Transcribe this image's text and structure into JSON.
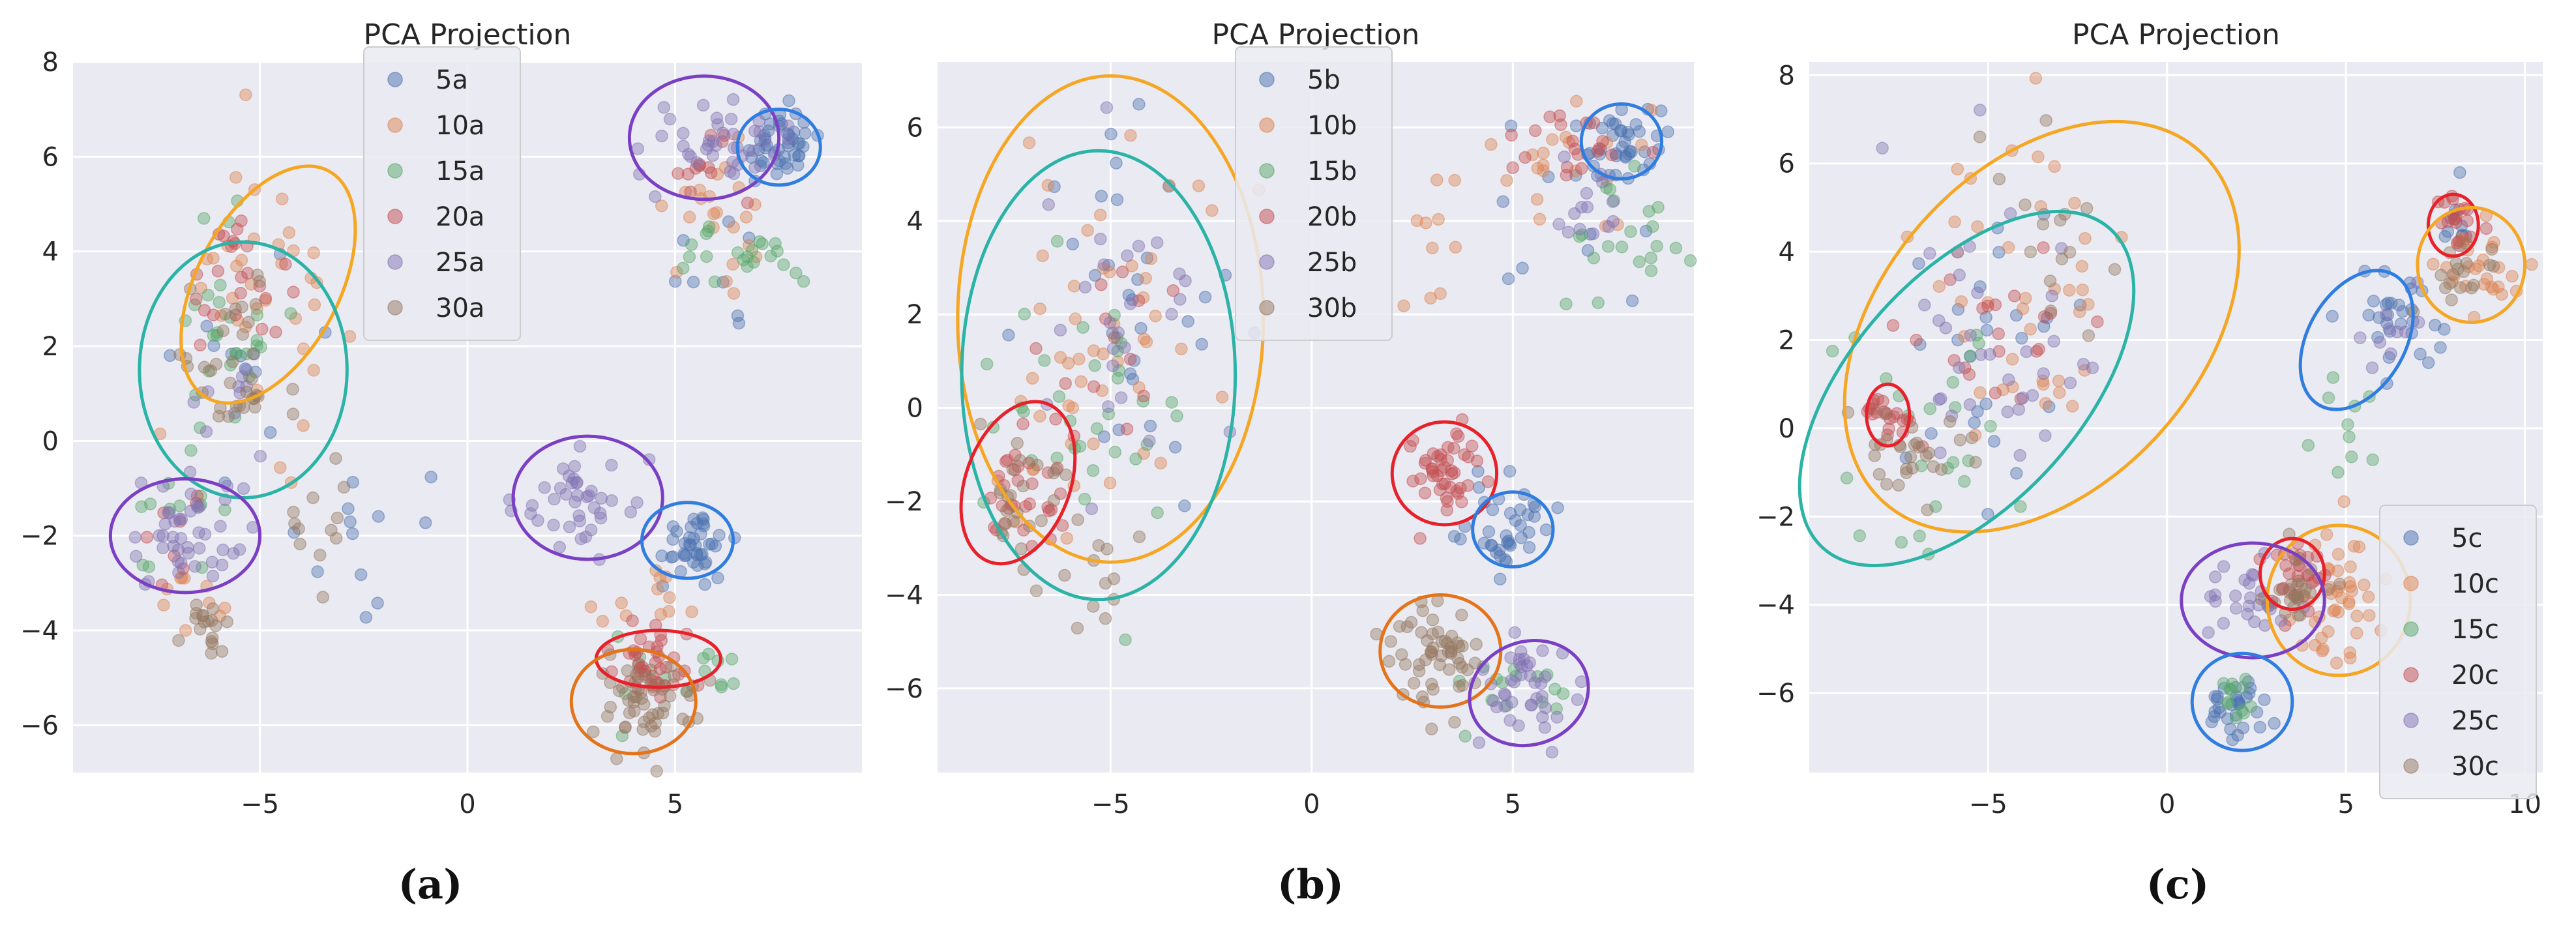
{
  "figure": {
    "captions": [
      "(a)",
      "(b)",
      "(c)"
    ]
  },
  "chart_data": [
    {
      "type": "scatter",
      "title": "PCA Projection",
      "xlabel": "",
      "ylabel": "",
      "xlim": [
        -9.5,
        9.5
      ],
      "ylim": [
        -7,
        8
      ],
      "xticks": [
        "−5",
        "0",
        "5"
      ],
      "xtick_values": [
        -5,
        0,
        5
      ],
      "yticks": [
        "8",
        "6",
        "4",
        "2",
        "0",
        "−2",
        "−4",
        "−6"
      ],
      "ytick_values": [
        8,
        6,
        4,
        2,
        0,
        -2,
        -4,
        -6
      ],
      "grid": true,
      "legend_position": "top-center",
      "series": [
        {
          "name": "5a",
          "color": "#4c72b0",
          "clusters": [
            [
              7.5,
              6.2,
              0.5,
              0.4,
              45
            ],
            [
              5.5,
              -2.1,
              0.4,
              0.35,
              40
            ],
            [
              -2.5,
              -1.8,
              1.2,
              0.8,
              12
            ],
            [
              -5,
              1.5,
              0.9,
              1.2,
              12
            ],
            [
              6,
              3,
              0.5,
              0.8,
              8
            ]
          ]
        },
        {
          "name": "10a",
          "color": "#dd8452",
          "clusters": [
            [
              -4.8,
              3.2,
              1.0,
              1.5,
              35
            ],
            [
              5.8,
              5,
              0.7,
              0.6,
              22
            ],
            [
              -6.7,
              -3.5,
              0.4,
              0.4,
              10
            ],
            [
              4.3,
              -3.5,
              0.6,
              0.3,
              12
            ]
          ]
        },
        {
          "name": "15a",
          "color": "#55a868",
          "clusters": [
            [
              -5.8,
              2,
              0.7,
              1.2,
              28
            ],
            [
              6.5,
              4,
              1.2,
              0.4,
              22
            ],
            [
              5,
              -5.2,
              1.0,
              0.5,
              18
            ],
            [
              -6.8,
              -2,
              0.6,
              0.5,
              10
            ]
          ]
        },
        {
          "name": "20a",
          "color": "#c44e52",
          "clusters": [
            [
              -5.5,
              3.5,
              0.6,
              0.8,
              24
            ],
            [
              4.5,
              -4.6,
              0.7,
              0.4,
              40
            ],
            [
              5.8,
              5.8,
              0.5,
              0.4,
              12
            ],
            [
              -7,
              -2,
              0.4,
              0.4,
              8
            ]
          ]
        },
        {
          "name": "25a",
          "color": "#8172b3",
          "clusters": [
            [
              6,
              6.3,
              0.8,
              0.5,
              40
            ],
            [
              2.8,
              -1.2,
              0.8,
              0.5,
              40
            ],
            [
              -6.7,
              -2,
              0.6,
              0.6,
              45
            ],
            [
              -5.8,
              1,
              0.5,
              0.6,
              10
            ]
          ]
        },
        {
          "name": "30a",
          "color": "#937860",
          "clusters": [
            [
              4.2,
              -5.5,
              0.7,
              0.5,
              50
            ],
            [
              -5.7,
              1.5,
              0.7,
              1.0,
              35
            ],
            [
              -6.2,
              -4,
              0.3,
              0.4,
              18
            ],
            [
              -3.5,
              -1.5,
              0.6,
              0.6,
              12
            ]
          ]
        }
      ],
      "ellipses": [
        {
          "color": "#f5a623",
          "cx": -4.8,
          "cy": 3.3,
          "rx": 3.1,
          "ry": 1.5,
          "angle": 62
        },
        {
          "color": "#2ab3a6",
          "cx": -5.4,
          "cy": 1.5,
          "rx": 2.5,
          "ry": 2.7,
          "angle": 0
        },
        {
          "color": "#7b3fc4",
          "cx": -6.8,
          "cy": -2.0,
          "rx": 1.8,
          "ry": 1.2,
          "angle": 0
        },
        {
          "color": "#7b3fc4",
          "cx": 5.7,
          "cy": 6.4,
          "rx": 1.8,
          "ry": 1.3,
          "angle": 0
        },
        {
          "color": "#2f7de0",
          "cx": 7.5,
          "cy": 6.2,
          "rx": 1.0,
          "ry": 0.8,
          "angle": 0
        },
        {
          "color": "#7b3fc4",
          "cx": 2.9,
          "cy": -1.2,
          "rx": 1.8,
          "ry": 1.3,
          "angle": 0
        },
        {
          "color": "#2f7de0",
          "cx": 5.3,
          "cy": -2.1,
          "rx": 1.1,
          "ry": 0.8,
          "angle": 0
        },
        {
          "color": "#e8202a",
          "cx": 4.6,
          "cy": -4.6,
          "rx": 1.5,
          "ry": 0.6,
          "angle": 0
        },
        {
          "color": "#e4731a",
          "cx": 4.0,
          "cy": -5.5,
          "rx": 1.5,
          "ry": 1.1,
          "angle": 0
        }
      ]
    },
    {
      "type": "scatter",
      "title": "PCA Projection",
      "xlabel": "",
      "ylabel": "",
      "xlim": [
        -9.3,
        9.5
      ],
      "ylim": [
        -7.8,
        7.4
      ],
      "xticks": [
        "−5",
        "0",
        "5"
      ],
      "xtick_values": [
        -5,
        0,
        5
      ],
      "yticks": [
        "6",
        "4",
        "2",
        "0",
        "−2",
        "−4",
        "−6"
      ],
      "ytick_values": [
        6,
        4,
        2,
        0,
        -2,
        -4,
        -6
      ],
      "grid": true,
      "legend_position": "top-center",
      "series": [
        {
          "name": "5b",
          "color": "#4c72b0",
          "clusters": [
            [
              7.7,
              5.7,
              0.5,
              0.4,
              40
            ],
            [
              5,
              -2.5,
              0.5,
              0.5,
              38
            ],
            [
              -4.5,
              2.5,
              1.3,
              2.0,
              30
            ],
            [
              6,
              3.5,
              1.0,
              0.8,
              10
            ]
          ]
        },
        {
          "name": "10b",
          "color": "#dd8452",
          "clusters": [
            [
              -5,
              2,
              1.5,
              2.0,
              40
            ],
            [
              6.5,
              5.2,
              1.0,
              0.8,
              20
            ],
            [
              3,
              3.3,
              0.8,
              1.0,
              10
            ],
            [
              -6,
              -1,
              1.0,
              1.0,
              10
            ]
          ]
        },
        {
          "name": "15b",
          "color": "#55a868",
          "clusters": [
            [
              -5.8,
              0.5,
              1.4,
              1.8,
              35
            ],
            [
              7.5,
              3.8,
              1.0,
              0.8,
              22
            ],
            [
              5,
              -5.8,
              0.8,
              0.5,
              15
            ]
          ]
        },
        {
          "name": "20b",
          "color": "#c44e52",
          "clusters": [
            [
              -7.2,
              -1.8,
              0.5,
              0.7,
              30
            ],
            [
              3.3,
              -1.4,
              0.5,
              0.5,
              45
            ],
            [
              6.6,
              5.6,
              0.6,
              0.4,
              20
            ],
            [
              -5.2,
              1.5,
              0.8,
              1.2,
              15
            ]
          ]
        },
        {
          "name": "25b",
          "color": "#8172b3",
          "clusters": [
            [
              5.4,
              -6.1,
              0.6,
              0.5,
              40
            ],
            [
              -4.5,
              2,
              1.2,
              1.8,
              25
            ],
            [
              7,
              4.5,
              0.6,
              0.6,
              14
            ]
          ]
        },
        {
          "name": "30b",
          "color": "#937860",
          "clusters": [
            [
              3.1,
              -5.3,
              0.6,
              0.7,
              55
            ],
            [
              -7,
              -2,
              0.6,
              0.8,
              25
            ],
            [
              -5.5,
              -3.5,
              0.6,
              0.6,
              12
            ]
          ]
        }
      ],
      "ellipses": [
        {
          "color": "#f5a623",
          "cx": -5.0,
          "cy": 1.9,
          "rx": 3.8,
          "ry": 5.2,
          "angle": 0
        },
        {
          "color": "#2ab3a6",
          "cx": -5.3,
          "cy": 0.7,
          "rx": 3.4,
          "ry": 4.8,
          "angle": 0
        },
        {
          "color": "#e8202a",
          "cx": -7.3,
          "cy": -1.6,
          "rx": 1.3,
          "ry": 1.8,
          "angle": -20
        },
        {
          "color": "#2f7de0",
          "cx": 7.7,
          "cy": 5.7,
          "rx": 1.0,
          "ry": 0.8,
          "angle": 0
        },
        {
          "color": "#e8202a",
          "cx": 3.3,
          "cy": -1.4,
          "rx": 1.3,
          "ry": 1.1,
          "angle": 0
        },
        {
          "color": "#2f7de0",
          "cx": 5.0,
          "cy": -2.6,
          "rx": 1.0,
          "ry": 0.8,
          "angle": 0
        },
        {
          "color": "#e4731a",
          "cx": 3.2,
          "cy": -5.2,
          "rx": 1.5,
          "ry": 1.2,
          "angle": 0
        },
        {
          "color": "#7b3fc4",
          "cx": 5.4,
          "cy": -6.1,
          "rx": 1.5,
          "ry": 1.1,
          "angle": 20
        }
      ]
    },
    {
      "type": "scatter",
      "title": "PCA Projection",
      "xlabel": "",
      "ylabel": "",
      "xlim": [
        -10,
        10.5
      ],
      "ylim": [
        -7.8,
        8.3
      ],
      "xticks": [
        "−5",
        "0",
        "5",
        "10"
      ],
      "xtick_values": [
        -5,
        0,
        5,
        10
      ],
      "yticks": [
        "8",
        "6",
        "4",
        "2",
        "0",
        "−2",
        "−4",
        "−6"
      ],
      "ytick_values": [
        8,
        6,
        4,
        2,
        0,
        -2,
        -4,
        -6
      ],
      "grid": true,
      "legend_position": "lower-right",
      "series": [
        {
          "name": "5c",
          "color": "#4c72b0",
          "clusters": [
            [
              6.5,
              2.5,
              0.7,
              0.7,
              30
            ],
            [
              2,
              -6.3,
              0.5,
              0.4,
              30
            ],
            [
              -5,
              2,
              1.5,
              1.5,
              25
            ],
            [
              8.2,
              4.6,
              0.4,
              0.4,
              10
            ]
          ]
        },
        {
          "name": "10c",
          "color": "#dd8452",
          "clusters": [
            [
              -4,
              3,
              1.5,
              2.2,
              40
            ],
            [
              4.7,
              -3.8,
              0.6,
              0.8,
              45
            ],
            [
              8.5,
              3.7,
              0.6,
              0.5,
              28
            ]
          ]
        },
        {
          "name": "15c",
          "color": "#55a868",
          "clusters": [
            [
              -6,
              -0.5,
              1.5,
              1.5,
              25
            ],
            [
              2,
              -6.2,
              0.4,
              0.3,
              12
            ],
            [
              5,
              0,
              0.7,
              0.8,
              10
            ]
          ]
        },
        {
          "name": "20c",
          "color": "#c44e52",
          "clusters": [
            [
              -7.8,
              0.3,
              0.3,
              0.3,
              20
            ],
            [
              3.7,
              -3.3,
              0.4,
              0.4,
              28
            ],
            [
              8.2,
              4.6,
              0.4,
              0.4,
              18
            ],
            [
              -4.5,
              2,
              1.2,
              1.2,
              20
            ]
          ]
        },
        {
          "name": "25c",
          "color": "#8172b3",
          "clusters": [
            [
              -5,
              1.5,
              1.5,
              1.8,
              35
            ],
            [
              2.3,
              -3.9,
              0.7,
              0.4,
              28
            ],
            [
              6.2,
              2.2,
              0.6,
              0.6,
              10
            ]
          ]
        },
        {
          "name": "30c",
          "color": "#937860",
          "clusters": [
            [
              -7.5,
              -0.8,
              1.0,
              0.6,
              30
            ],
            [
              3.5,
              -3.8,
              0.5,
              0.5,
              25
            ],
            [
              8.3,
              3.7,
              0.5,
              0.5,
              18
            ],
            [
              -3,
              4.5,
              1.0,
              1.2,
              15
            ]
          ]
        }
      ],
      "ellipses": [
        {
          "color": "#f5a623",
          "cx": -3.5,
          "cy": 2.3,
          "rx": 6.6,
          "ry": 3.6,
          "angle": 48
        },
        {
          "color": "#2ab3a6",
          "cx": -5.6,
          "cy": 0.9,
          "rx": 6.0,
          "ry": 2.6,
          "angle": 48
        },
        {
          "color": "#e8202a",
          "cx": -7.8,
          "cy": 0.3,
          "rx": 0.6,
          "ry": 0.7,
          "angle": 0
        },
        {
          "color": "#e8202a",
          "cx": 8.0,
          "cy": 4.6,
          "rx": 0.7,
          "ry": 0.7,
          "angle": 0
        },
        {
          "color": "#f5a623",
          "cx": 8.5,
          "cy": 3.7,
          "rx": 1.5,
          "ry": 1.3,
          "angle": 0
        },
        {
          "color": "#2f7de0",
          "cx": 5.3,
          "cy": 2.0,
          "rx": 2.1,
          "ry": 1.1,
          "angle": 60
        },
        {
          "color": "#f5a623",
          "cx": 4.8,
          "cy": -3.9,
          "rx": 2.0,
          "ry": 1.7,
          "angle": 0
        },
        {
          "color": "#e8202a",
          "cx": 3.5,
          "cy": -3.3,
          "rx": 0.9,
          "ry": 0.8,
          "angle": 0
        },
        {
          "color": "#7b3fc4",
          "cx": 2.4,
          "cy": -3.9,
          "rx": 2.0,
          "ry": 1.3,
          "angle": 0
        },
        {
          "color": "#2f7de0",
          "cx": 2.1,
          "cy": -6.2,
          "rx": 1.4,
          "ry": 1.1,
          "angle": 0
        }
      ]
    }
  ]
}
